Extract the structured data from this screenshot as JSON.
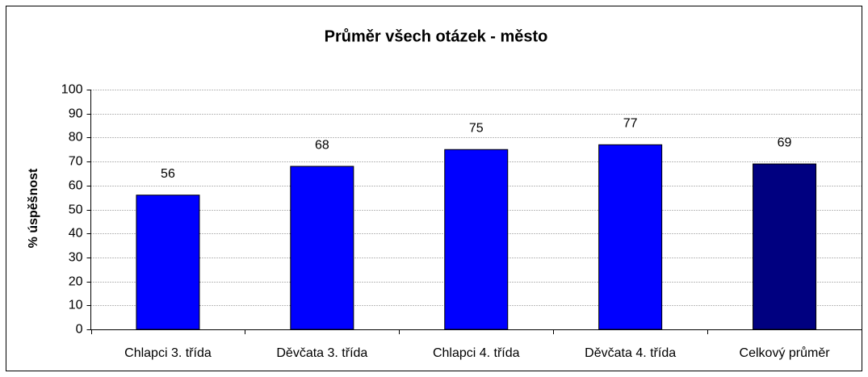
{
  "chart_data": {
    "type": "bar",
    "title": "Průměr všech otázek - město",
    "y_label": "% úspěšnost",
    "categories": [
      "Chlapci 3. třída",
      "Děvčata 3. třída",
      "Chlapci 4. třída",
      "Děvčata 4. třída",
      "Celkový průměr"
    ],
    "values": [
      56,
      68,
      75,
      77,
      69
    ],
    "colors": [
      "#0000ff",
      "#0000ff",
      "#0000ff",
      "#0000ff",
      "#000080"
    ],
    "ylim": [
      0,
      100
    ],
    "yticks": [
      0,
      10,
      20,
      30,
      40,
      50,
      60,
      70,
      80,
      90,
      100
    ],
    "grid": true
  }
}
